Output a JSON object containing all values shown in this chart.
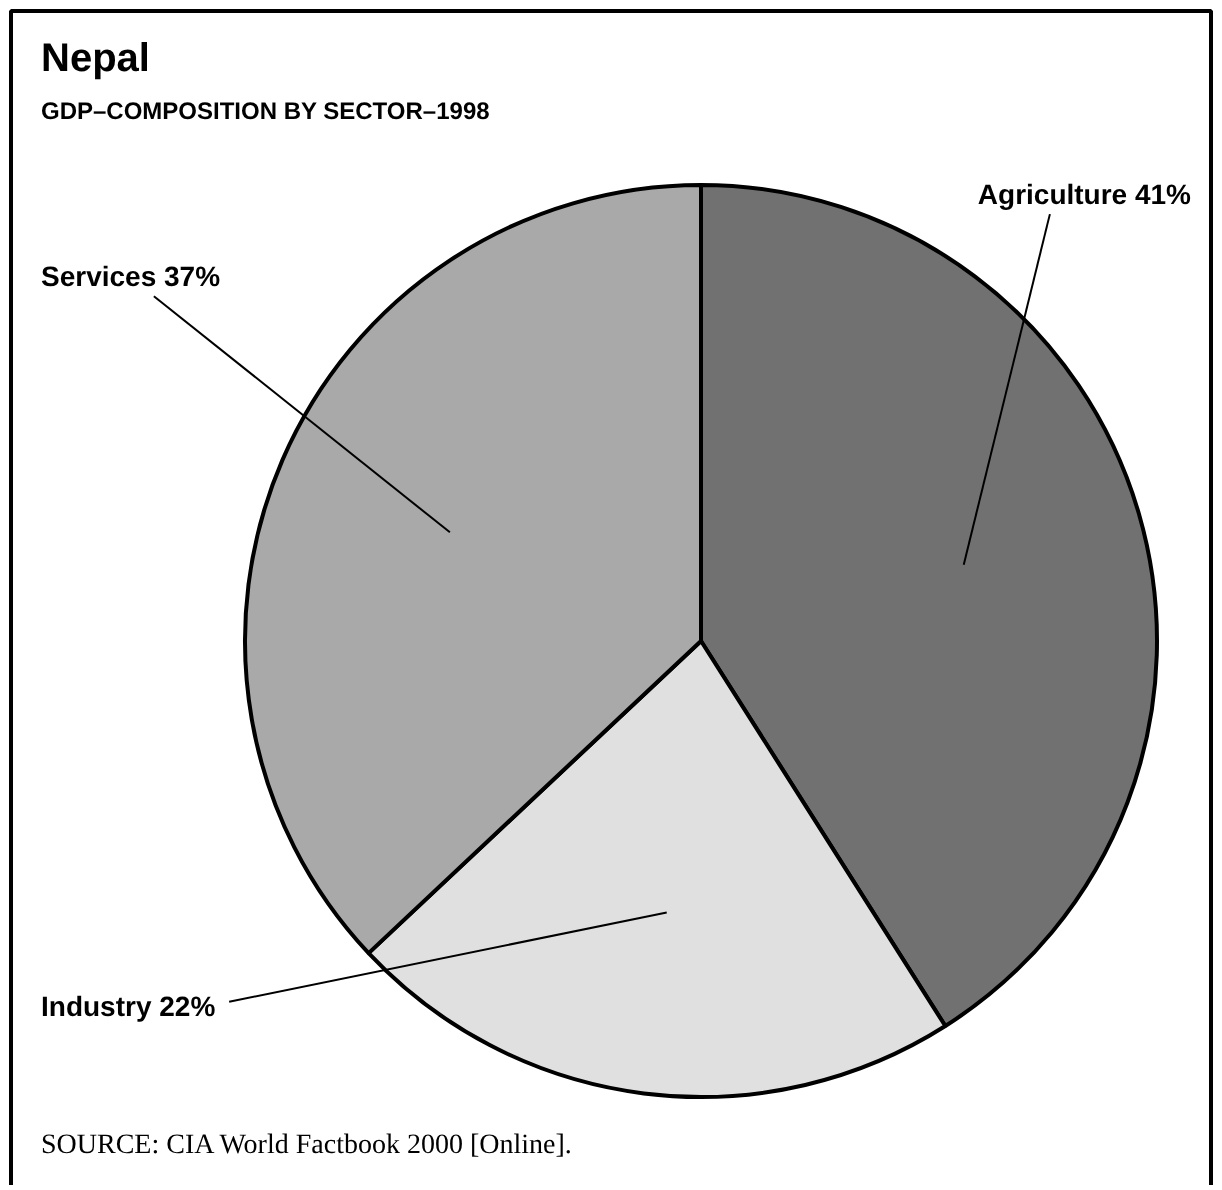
{
  "chart_data": {
    "type": "pie",
    "title": "Nepal",
    "subtitle": "GDP–COMPOSITION BY SECTOR–1998",
    "categories": [
      "Agriculture",
      "Industry",
      "Services"
    ],
    "values": [
      41,
      22,
      37
    ],
    "value_labels": [
      "41%",
      "22%",
      "37%"
    ],
    "colors": [
      "#717171",
      "#e0e0e0",
      "#a9a9a9"
    ],
    "annotations": [
      "SOURCE: CIA World Factbook 2000 [Online]."
    ]
  }
}
